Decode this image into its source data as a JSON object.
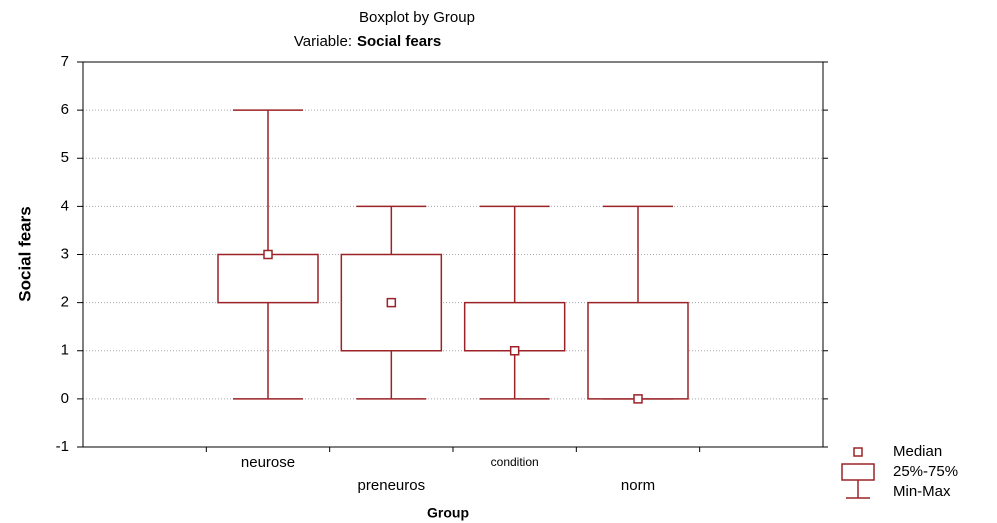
{
  "chart_data": {
    "type": "box",
    "title": "Boxplot by Group",
    "subtitle_prefix": "Variable:",
    "subtitle_variable": "Social fears",
    "x_label": "Group",
    "y_label": "Social fears",
    "categories": [
      "neurose",
      "preneuros",
      "condition",
      "norm"
    ],
    "boxes": [
      {
        "min": 0,
        "q1": 2,
        "median": 3,
        "q3": 3,
        "max": 6
      },
      {
        "min": 0,
        "q1": 1,
        "median": 2,
        "q3": 3,
        "max": 4
      },
      {
        "min": 0,
        "q1": 1,
        "median": 1,
        "q3": 2,
        "max": 4
      },
      {
        "min": 0,
        "q1": 0,
        "median": 0,
        "q3": 2,
        "max": 4
      }
    ],
    "color": "#9b2226",
    "ylim": [
      -1,
      7
    ],
    "yticks": [
      -1,
      0,
      1,
      2,
      3,
      4,
      5,
      6,
      7
    ],
    "grid": true,
    "legend": {
      "position": "lower right",
      "median": "Median",
      "box": "25%-75%",
      "whisker": "Min-Max"
    }
  }
}
